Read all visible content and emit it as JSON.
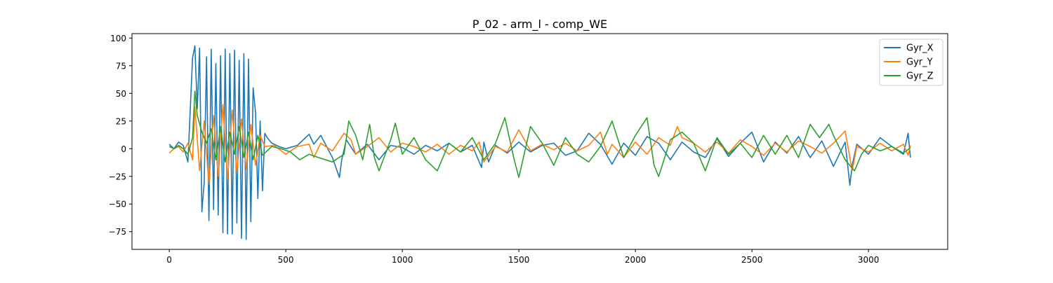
{
  "chart_data": {
    "type": "line",
    "title": "P_02 - arm_l - comp_WE",
    "xlabel": "",
    "ylabel": "",
    "xlim": [
      -160,
      3340
    ],
    "ylim": [
      -91,
      104
    ],
    "xticks": [
      0,
      500,
      1000,
      1500,
      2000,
      2500,
      3000
    ],
    "yticks": [
      -75,
      -50,
      -25,
      0,
      25,
      50,
      75,
      100
    ],
    "grid": false,
    "legend_position": "top-right",
    "series": [
      {
        "name": "Gyr_X",
        "color": "#1f77b4",
        "x": [
          0,
          20,
          40,
          60,
          80,
          100,
          110,
          120,
          130,
          140,
          150,
          160,
          170,
          180,
          190,
          200,
          210,
          220,
          230,
          240,
          250,
          260,
          270,
          280,
          290,
          300,
          310,
          320,
          330,
          340,
          350,
          360,
          370,
          380,
          390,
          400,
          410,
          420,
          440,
          470,
          500,
          550,
          600,
          620,
          650,
          700,
          730,
          740,
          760,
          800,
          850,
          900,
          950,
          1000,
          1050,
          1100,
          1150,
          1200,
          1250,
          1300,
          1340,
          1350,
          1370,
          1400,
          1450,
          1500,
          1550,
          1600,
          1650,
          1700,
          1750,
          1800,
          1850,
          1900,
          1950,
          2000,
          2050,
          2100,
          2150,
          2200,
          2250,
          2300,
          2350,
          2400,
          2450,
          2500,
          2550,
          2600,
          2650,
          2700,
          2750,
          2800,
          2850,
          2900,
          2920,
          2930,
          2950,
          3000,
          3050,
          3100,
          3150,
          3170,
          3180
        ],
        "y": [
          4,
          0,
          6,
          3,
          -12,
          82,
          93,
          36,
          91,
          -57,
          -30,
          83,
          -65,
          90,
          -55,
          77,
          -60,
          84,
          -76,
          90,
          -77,
          86,
          -77,
          89,
          -67,
          80,
          -81,
          86,
          -82,
          81,
          -66,
          55,
          33,
          -45,
          25,
          -38,
          14,
          10,
          5,
          2,
          0,
          3,
          13,
          4,
          12,
          -8,
          -26,
          -10,
          8,
          -5,
          4,
          -10,
          3,
          1,
          -5,
          3,
          -2,
          5,
          -3,
          3,
          -17,
          6,
          -12,
          3,
          -4,
          6,
          -3,
          3,
          5,
          -6,
          -2,
          14,
          4,
          -14,
          5,
          -6,
          11,
          5,
          -10,
          6,
          -3,
          -8,
          9,
          -7,
          5,
          15,
          -12,
          6,
          -4,
          11,
          -8,
          7,
          -16,
          6,
          -33,
          -15,
          4,
          -5,
          10,
          2,
          -5,
          14,
          -8
        ]
      },
      {
        "name": "Gyr_Y",
        "color": "#ff7f0e",
        "x": [
          0,
          20,
          40,
          60,
          80,
          100,
          110,
          130,
          150,
          170,
          190,
          210,
          230,
          250,
          270,
          290,
          310,
          330,
          350,
          370,
          390,
          410,
          450,
          500,
          550,
          600,
          620,
          650,
          700,
          750,
          780,
          800,
          850,
          900,
          950,
          1000,
          1050,
          1100,
          1150,
          1200,
          1250,
          1300,
          1330,
          1350,
          1400,
          1450,
          1500,
          1550,
          1600,
          1650,
          1700,
          1750,
          1800,
          1850,
          1880,
          1900,
          1950,
          2000,
          2050,
          2100,
          2150,
          2180,
          2200,
          2250,
          2300,
          2350,
          2400,
          2450,
          2500,
          2550,
          2600,
          2650,
          2700,
          2750,
          2800,
          2850,
          2900,
          2930,
          2950,
          3000,
          3050,
          3100,
          3150,
          3170,
          3180
        ],
        "y": [
          -4,
          0,
          2,
          -3,
          5,
          -10,
          38,
          -20,
          25,
          -32,
          30,
          -25,
          40,
          -28,
          35,
          -22,
          27,
          -18,
          22,
          -15,
          12,
          2,
          3,
          -5,
          2,
          4,
          -8,
          5,
          -2,
          14,
          8,
          -5,
          2,
          10,
          -3,
          5,
          2,
          -3,
          4,
          -5,
          3,
          -2,
          6,
          -12,
          2,
          -3,
          17,
          -2,
          4,
          -1,
          5,
          -2,
          3,
          15,
          -5,
          4,
          -8,
          6,
          -5,
          10,
          3,
          20,
          10,
          5,
          -3,
          6,
          -4,
          8,
          2,
          -6,
          5,
          -3,
          7,
          2,
          -4,
          5,
          16,
          -20,
          2,
          -3,
          5,
          -2,
          4,
          -6,
          3
        ]
      },
      {
        "name": "Gyr_Z",
        "color": "#2ca02c",
        "x": [
          0,
          20,
          40,
          60,
          80,
          100,
          110,
          120,
          140,
          160,
          180,
          200,
          220,
          240,
          260,
          280,
          300,
          320,
          340,
          360,
          380,
          400,
          440,
          480,
          520,
          560,
          600,
          640,
          700,
          750,
          770,
          800,
          830,
          860,
          880,
          900,
          950,
          970,
          1000,
          1050,
          1100,
          1150,
          1200,
          1250,
          1300,
          1350,
          1400,
          1440,
          1480,
          1500,
          1550,
          1600,
          1650,
          1700,
          1750,
          1800,
          1850,
          1900,
          1950,
          2000,
          2050,
          2080,
          2100,
          2150,
          2200,
          2250,
          2300,
          2350,
          2400,
          2450,
          2500,
          2550,
          2600,
          2650,
          2700,
          2750,
          2790,
          2830,
          2850,
          2900,
          2940,
          2970,
          3000,
          3050,
          3100,
          3150,
          3180
        ],
        "y": [
          2,
          0,
          3,
          0,
          -5,
          10,
          52,
          30,
          15,
          5,
          18,
          -10,
          20,
          -12,
          15,
          -5,
          20,
          -8,
          15,
          -10,
          12,
          -6,
          2,
          0,
          -3,
          -10,
          -5,
          -8,
          -12,
          -5,
          25,
          12,
          -10,
          22,
          -8,
          -20,
          8,
          23,
          -5,
          10,
          -10,
          -20,
          5,
          -3,
          10,
          -10,
          5,
          28,
          -10,
          -26,
          20,
          5,
          -15,
          10,
          -5,
          -12,
          2,
          25,
          -8,
          12,
          28,
          -15,
          -25,
          8,
          15,
          5,
          -20,
          10,
          -5,
          5,
          -8,
          12,
          -5,
          12,
          -8,
          22,
          10,
          22,
          12,
          -10,
          -20,
          -5,
          3,
          -2,
          2,
          -4,
          1
        ]
      }
    ]
  }
}
